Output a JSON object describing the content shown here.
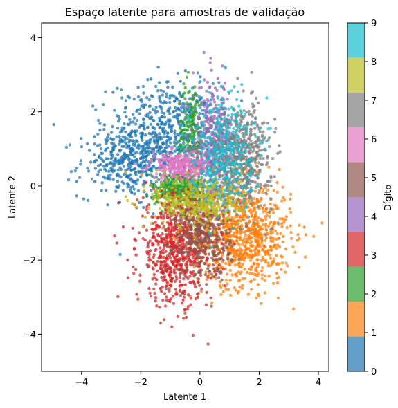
{
  "chart_data": {
    "type": "scatter",
    "title": "Espaço latente para amostras de validação",
    "xlabel": "Latente 1",
    "ylabel": "Latente 2",
    "xlim": [
      -5.35,
      4.35
    ],
    "ylim": [
      -5.0,
      4.4
    ],
    "xticks": [
      -4,
      -2,
      0,
      2,
      4
    ],
    "xtick_labels": [
      "−4",
      "−2",
      "0",
      "2",
      "4"
    ],
    "yticks": [
      -4,
      -2,
      0,
      2,
      4
    ],
    "ytick_labels": [
      "−4",
      "−2",
      "0",
      "2",
      "4"
    ],
    "grid": false,
    "colorbar": {
      "label": "Dígito",
      "range": [
        0,
        9
      ],
      "ticks": [
        "0",
        "1",
        "2",
        "3",
        "4",
        "5",
        "6",
        "7",
        "8",
        "9"
      ],
      "colors": [
        "#1f77b4",
        "#ff7f0e",
        "#2ca02c",
        "#d62728",
        "#9467bd",
        "#8c564b",
        "#e377c2",
        "#7f7f7f",
        "#bcbd22",
        "#17becf"
      ]
    },
    "series": [
      {
        "digit": 0,
        "center": [
          -1.3,
          1.3
        ],
        "spread": [
          0.9,
          0.75
        ],
        "count": 650,
        "tail": [
          -2.6,
          0.6
        ],
        "tail_count": 260,
        "tail_spread": [
          0.75,
          0.45
        ]
      },
      {
        "digit": 1,
        "center": [
          1.4,
          -1.3
        ],
        "spread": [
          0.85,
          0.7
        ],
        "count": 900
      },
      {
        "digit": 2,
        "center": [
          -0.75,
          -0.1
        ],
        "spread": [
          0.45,
          0.22
        ],
        "count": 280,
        "tail": [
          -0.3,
          1.4
        ],
        "tail_count": 200,
        "tail_spread": [
          0.22,
          0.7
        ]
      },
      {
        "digit": 3,
        "center": [
          -0.8,
          -1.7
        ],
        "spread": [
          0.65,
          0.75
        ],
        "count": 700
      },
      {
        "digit": 4,
        "center": [
          0.45,
          1.2
        ],
        "spread": [
          0.35,
          0.8
        ],
        "count": 380
      },
      {
        "digit": 5,
        "center": [
          0.05,
          -1.3
        ],
        "spread": [
          0.5,
          0.6
        ],
        "count": 420
      },
      {
        "digit": 6,
        "center": [
          -0.65,
          0.55
        ],
        "spread": [
          0.5,
          0.18
        ],
        "count": 280
      },
      {
        "digit": 7,
        "center": [
          1.35,
          0.75
        ],
        "spread": [
          0.55,
          0.7
        ],
        "count": 600
      },
      {
        "digit": 8,
        "center": [
          -0.1,
          -0.4
        ],
        "spread": [
          0.75,
          0.35
        ],
        "count": 380
      },
      {
        "digit": 9,
        "center": [
          0.75,
          1.0
        ],
        "spread": [
          0.55,
          0.75
        ],
        "count": 360
      }
    ]
  }
}
